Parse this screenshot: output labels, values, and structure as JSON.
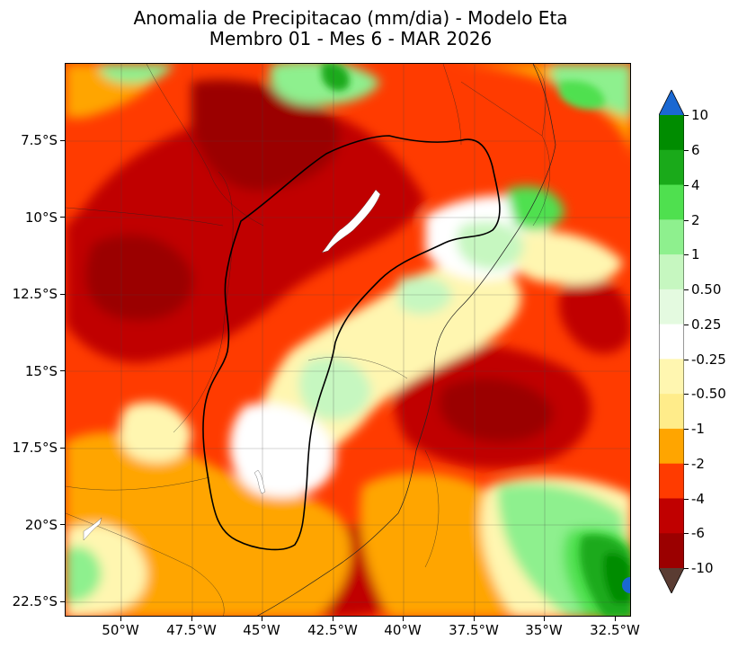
{
  "title": {
    "line1": "Anomalia de Precipitacao (mm/dia) - Modelo Eta",
    "line2": "Membro 01 - Mes 6 - MAR 2026"
  },
  "map": {
    "lon_range": [
      -52.0,
      -32.0
    ],
    "lat_range": [
      -23.0,
      -5.0
    ],
    "gridlines": true,
    "x_ticks": [
      "50°W",
      "47.5°W",
      "45°W",
      "42.5°W",
      "40°W",
      "37.5°W",
      "35°W",
      "32.5°W"
    ],
    "y_ticks": [
      "7.5°S",
      "10°S",
      "12.5°S",
      "15°S",
      "17.5°S",
      "20°S",
      "22.5°S"
    ],
    "x_tick_values": [
      -50,
      -47.5,
      -45,
      -42.5,
      -40,
      -37.5,
      -35,
      -32.5
    ],
    "y_tick_values": [
      -7.5,
      -10,
      -12.5,
      -15,
      -17.5,
      -20,
      -22.5
    ],
    "dominant_pattern": "negative anomalies (red) over most of the domain, positive anomalies (green) near coast and SE corner"
  },
  "colorbar": {
    "orientation": "vertical",
    "extend": "both",
    "labels": [
      "10",
      "6",
      "4",
      "2",
      "1",
      "0.50",
      "0.25",
      "-0.25",
      "-0.50",
      "-1",
      "-2",
      "-4",
      "-6",
      "-10"
    ],
    "colors": [
      "#008c00",
      "#1aaa1a",
      "#4fe04f",
      "#8ef08e",
      "#c6f7c0",
      "#e4fae0",
      "#ffffff",
      "#fff6b0",
      "#ffec8a",
      "#ffa500",
      "#ff3b00",
      "#c00000",
      "#9b0000"
    ],
    "over_color": "#1a68d2",
    "under_color": "#5a3c32"
  }
}
